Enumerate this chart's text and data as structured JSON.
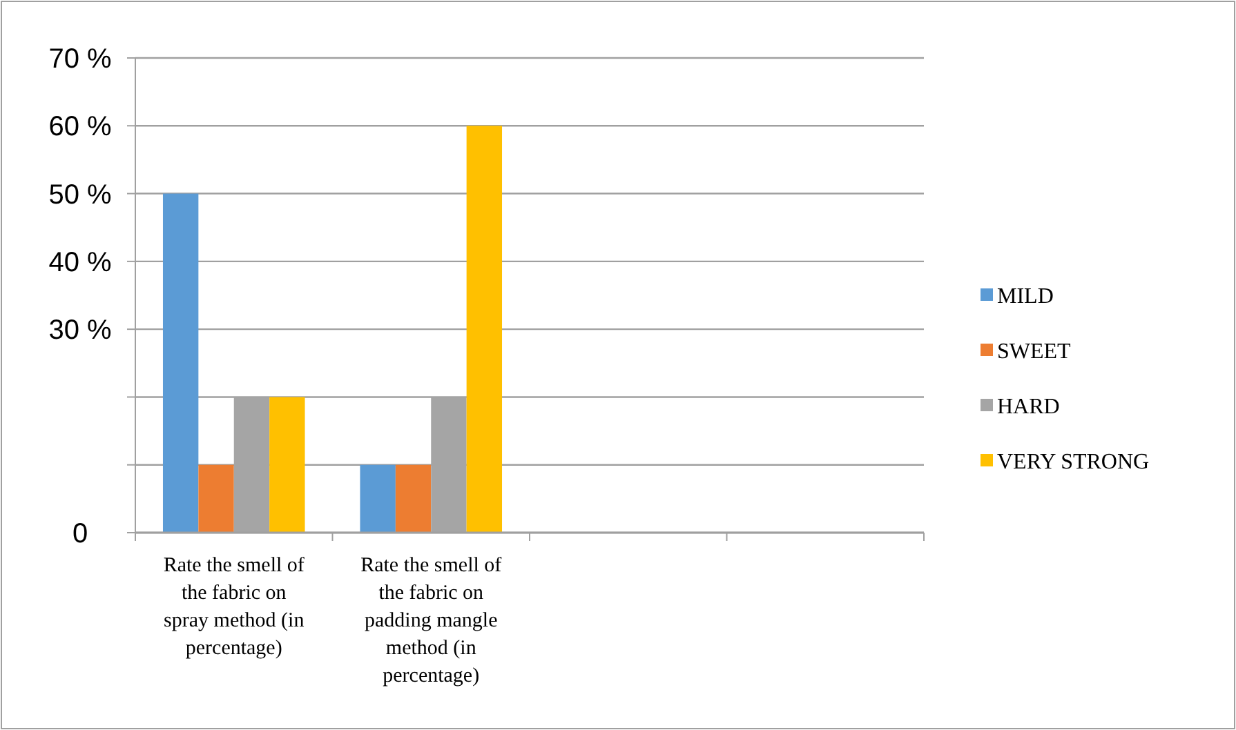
{
  "chart_data": {
    "type": "bar",
    "categories": [
      "Rate the smell of the fabric on spray method (in percentage)",
      "Rate the smell of the fabric on padding mangle method (in percentage)",
      null,
      null
    ],
    "series": [
      {
        "name": "MILD",
        "color": "#5b9bd5",
        "values": [
          50,
          10,
          null,
          null
        ]
      },
      {
        "name": "SWEET",
        "color": "#ed7d31",
        "values": [
          10,
          10,
          null,
          null
        ]
      },
      {
        "name": "HARD",
        "color": "#a5a5a5",
        "values": [
          20,
          20,
          null,
          null
        ]
      },
      {
        "name": "VERY STRONG",
        "color": "#ffc000",
        "values": [
          20,
          60,
          null,
          null
        ]
      }
    ],
    "ylim": [
      0,
      70
    ],
    "yticks": [
      0,
      {
        "value": 10,
        "label": null
      },
      {
        "value": 20,
        "label": null
      },
      {
        "value": 30,
        "label": "30 %"
      },
      {
        "value": 40,
        "label": "40 %"
      },
      {
        "value": 50,
        "label": "50 %"
      },
      {
        "value": 60,
        "label": "60 %"
      },
      {
        "value": 70,
        "label": "70 %"
      }
    ],
    "grid": "y",
    "legend": "right"
  }
}
